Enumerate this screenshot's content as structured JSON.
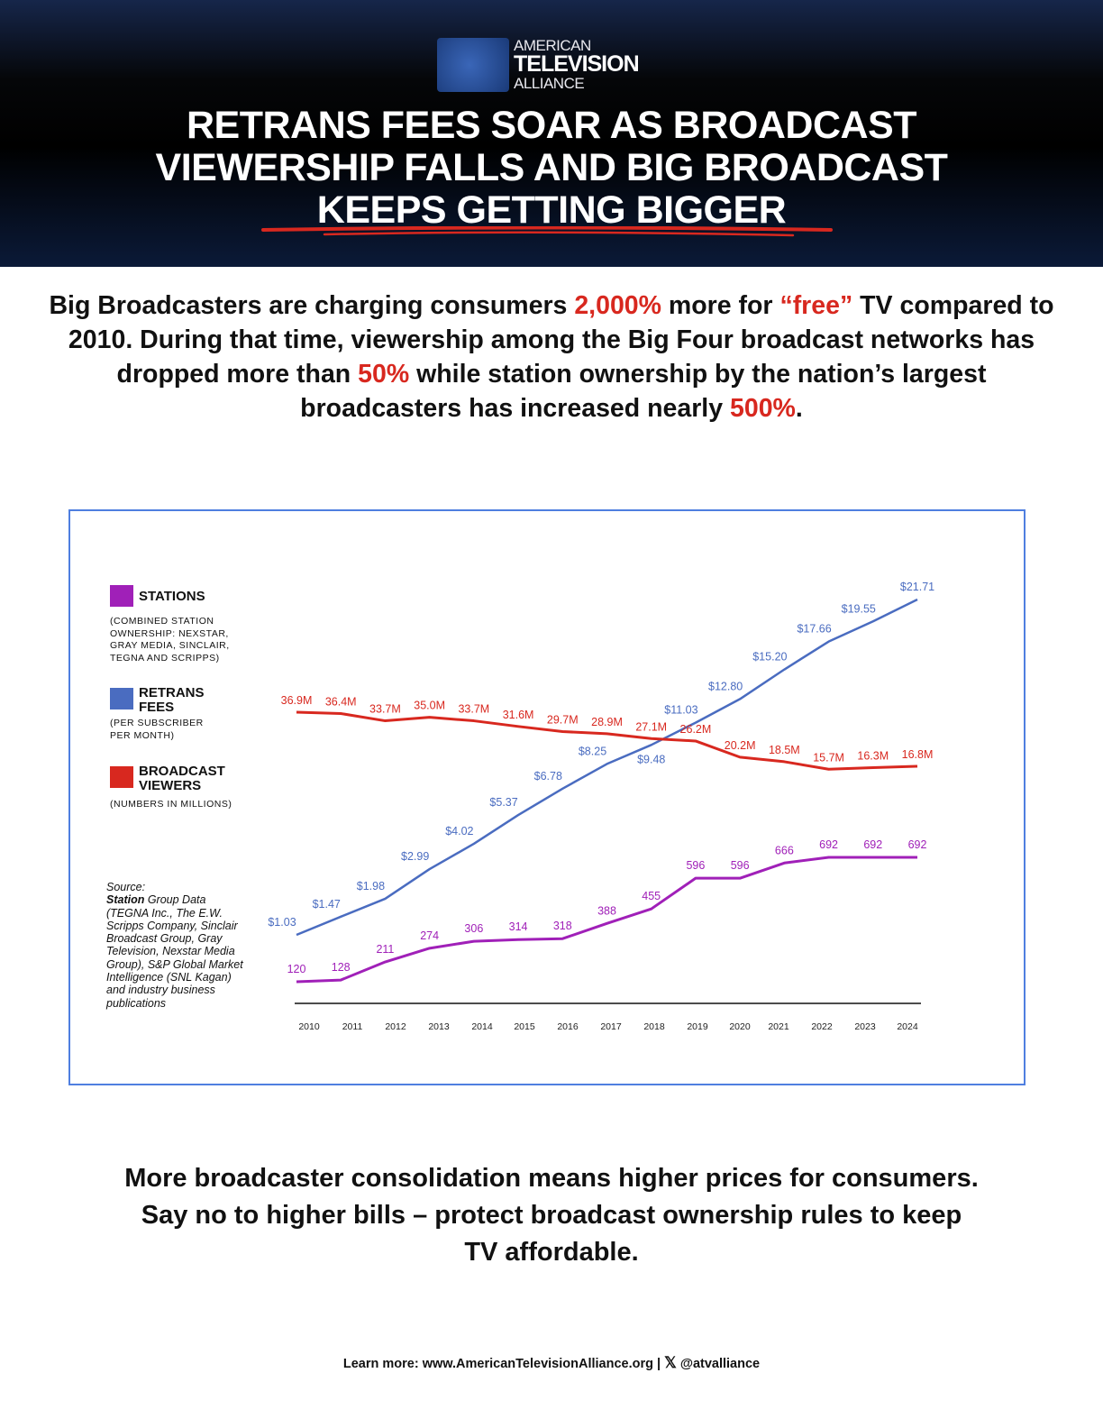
{
  "logo": {
    "line1": "AMERICAN",
    "line2": "TELEVISION",
    "line3": "ALLIANCE"
  },
  "title": {
    "line1": "RETRANS FEES SOAR AS BROADCAST",
    "line2": "VIEWERSHIP FALLS AND BIG BROADCAST",
    "line3": "KEEPS GETTING BIGGER"
  },
  "intro": {
    "p1": "Big Broadcasters are charging consumers ",
    "h1": "2,000%",
    "p2": " more for ",
    "h2": "“free”",
    "p3": " TV compared to 2010. During that time, viewership among the Big Four broadcast networks has dropped more than ",
    "h3": "50%",
    "p4": " while station ownership by the nation’s largest broadcasters has increased nearly ",
    "h4": "500%",
    "p5": "."
  },
  "legend": {
    "stations": {
      "title": "STATIONS",
      "note": "(COMBINED STATION OWNERSHIP: NEXSTAR, GRAY MEDIA, SINCLAIR, TEGNA AND SCRIPPS)"
    },
    "retrans": {
      "title": "RETRANS FEES",
      "note": "(PER SUBSCRIBER PER MONTH)"
    },
    "viewers": {
      "title": "BROADCAST VIEWERS",
      "note": "(NUMBERS IN MILLIONS)"
    }
  },
  "source": {
    "label": "Source:",
    "bold": "Station",
    "text": " Group Data (TEGNA Inc., The E.W. Scripps Company, Sinclair Broadcast Group, Gray Television, Nexstar Media Group), S&P Global Market Intelligence (SNL Kagan) and industry business publications"
  },
  "chart_data": {
    "type": "line",
    "x": [
      "2010",
      "2011",
      "2012",
      "2013",
      "2014",
      "2015",
      "2016",
      "2017",
      "2018",
      "2019",
      "2020",
      "2021",
      "2022",
      "2023",
      "2024"
    ],
    "series": [
      {
        "name": "Retrans Fees",
        "color": "#4a6cc0",
        "values": [
          1.03,
          1.47,
          1.98,
          2.99,
          4.02,
          5.37,
          6.78,
          8.25,
          9.48,
          11.03,
          12.8,
          15.2,
          17.66,
          19.55,
          21.71
        ],
        "labels": [
          "$1.03",
          "$1.47",
          "$1.98",
          "$2.99",
          "$4.02",
          "$5.37",
          "$6.78",
          "$8.25",
          "$9.48",
          "$11.03",
          "$12.80",
          "$15.20",
          "$17.66",
          "$19.55",
          "$21.71"
        ]
      },
      {
        "name": "Broadcast Viewers",
        "color": "#d8281f",
        "values": [
          36.9,
          36.4,
          33.7,
          35.0,
          33.7,
          31.6,
          29.7,
          28.9,
          27.1,
          26.2,
          20.2,
          18.5,
          15.7,
          16.3,
          16.8
        ],
        "labels": [
          "36.9M",
          "36.4M",
          "33.7M",
          "35.0M",
          "33.7M",
          "31.6M",
          "29.7M",
          "28.9M",
          "27.1M",
          "26.2M",
          "20.2M",
          "18.5M",
          "15.7M",
          "16.3M",
          "16.8M"
        ]
      },
      {
        "name": "Stations",
        "color": "#a020b8",
        "values": [
          120,
          128,
          211,
          274,
          306,
          314,
          318,
          388,
          455,
          596,
          596,
          666,
          692,
          692,
          692
        ],
        "labels": [
          "120",
          "128",
          "211",
          "274",
          "306",
          "314",
          "318",
          "388",
          "455",
          "596",
          "596",
          "666",
          "692",
          "692",
          "692"
        ]
      }
    ],
    "grid": false,
    "legend": "left"
  },
  "outro": {
    "line1": "More broadcaster consolidation means higher prices for consumers.",
    "line2": "Say no to higher bills – protect broadcast ownership rules to keep",
    "line3": "TV affordable."
  },
  "footer": {
    "text": "Learn more: www.AmericanTelevisionAlliance.org | ",
    "handle": "@atvalliance"
  }
}
